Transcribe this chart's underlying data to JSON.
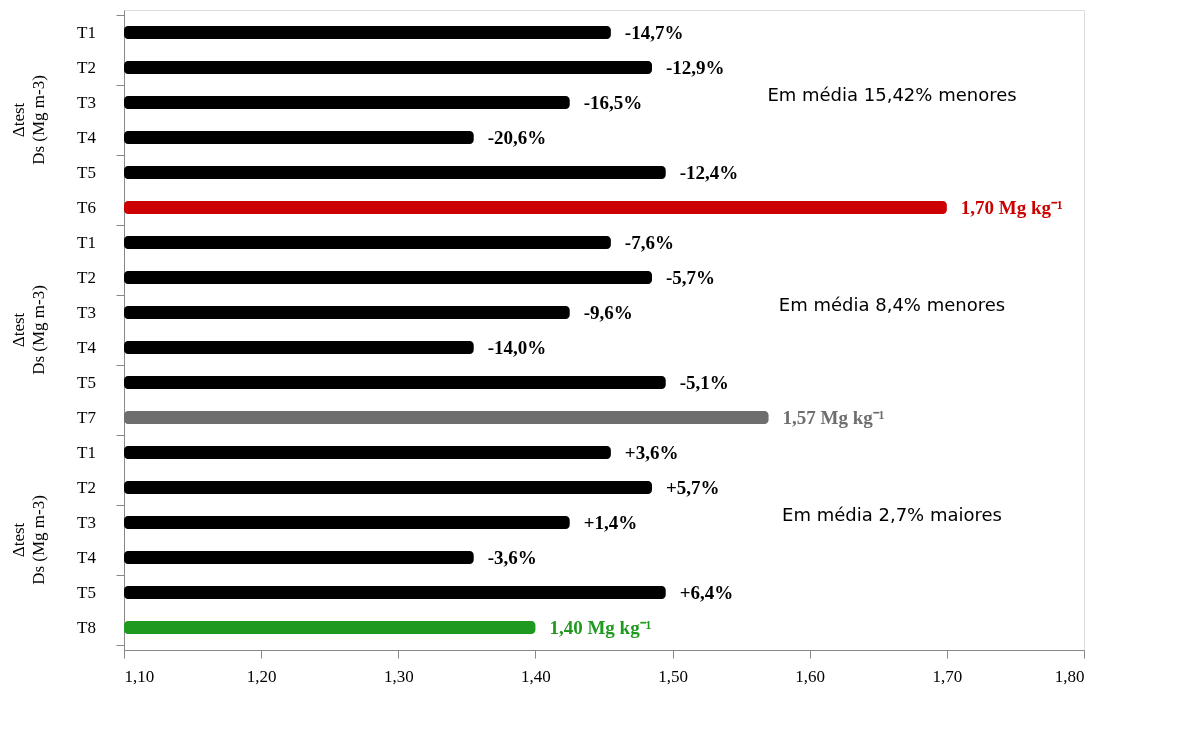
{
  "chart_data": {
    "type": "bar",
    "orientation": "horizontal",
    "categories": [
      "T1",
      "T2",
      "T3",
      "T4",
      "T5",
      "T6",
      "T1",
      "T2",
      "T3",
      "T4",
      "T5",
      "T7",
      "T1",
      "T2",
      "T3",
      "T4",
      "T5",
      "T8"
    ],
    "values": [
      1.455,
      1.485,
      1.425,
      1.355,
      1.495,
      1.7,
      1.455,
      1.485,
      1.425,
      1.355,
      1.495,
      1.57,
      1.455,
      1.485,
      1.425,
      1.355,
      1.495,
      1.4
    ],
    "colors": [
      "#000000",
      "#000000",
      "#000000",
      "#000000",
      "#000000",
      "#cc0000",
      "#000000",
      "#000000",
      "#000000",
      "#000000",
      "#000000",
      "#6e6e6e",
      "#000000",
      "#000000",
      "#000000",
      "#000000",
      "#000000",
      "#1f9a1f"
    ],
    "value_labels": [
      null,
      null,
      null,
      null,
      null,
      "1,70 Mg kg⁻¹",
      null,
      null,
      null,
      null,
      null,
      "1,57 Mg kg⁻¹",
      null,
      null,
      null,
      null,
      null,
      "1,40 Mg kg⁻¹"
    ],
    "xlim": [
      1.1,
      1.8
    ],
    "xticks": [
      {
        "value": 1.1,
        "label": "1,10"
      },
      {
        "value": 1.2,
        "label": "1,20"
      },
      {
        "value": 1.3,
        "label": "1,30"
      },
      {
        "value": 1.4,
        "label": "1,40"
      },
      {
        "value": 1.5,
        "label": "1,50"
      },
      {
        "value": 1.6,
        "label": "1,60"
      },
      {
        "value": 1.7,
        "label": "1,70"
      },
      {
        "value": 1.8,
        "label": "1,80"
      }
    ],
    "annotations": [
      "Δtest\nDs (Mg m-3)",
      "Em média 15,42% menores",
      "Δtest\nDs (Mg m-3)",
      "Em média 8,4% menores",
      "Δtest\nDs (Mg m-3)",
      "Em média 2,7% maiores",
      "-14,7%",
      "-12,9%",
      "-16,5%",
      "-20,6%",
      "-12,4%",
      "-7,6%",
      "-5,7%",
      "-9,6%",
      "-14,0%",
      "-5,1%",
      "+3,6%",
      "+5,7%",
      "+1,4%",
      "-3,6%",
      "+6,4%"
    ],
    "grid": false
  }
}
